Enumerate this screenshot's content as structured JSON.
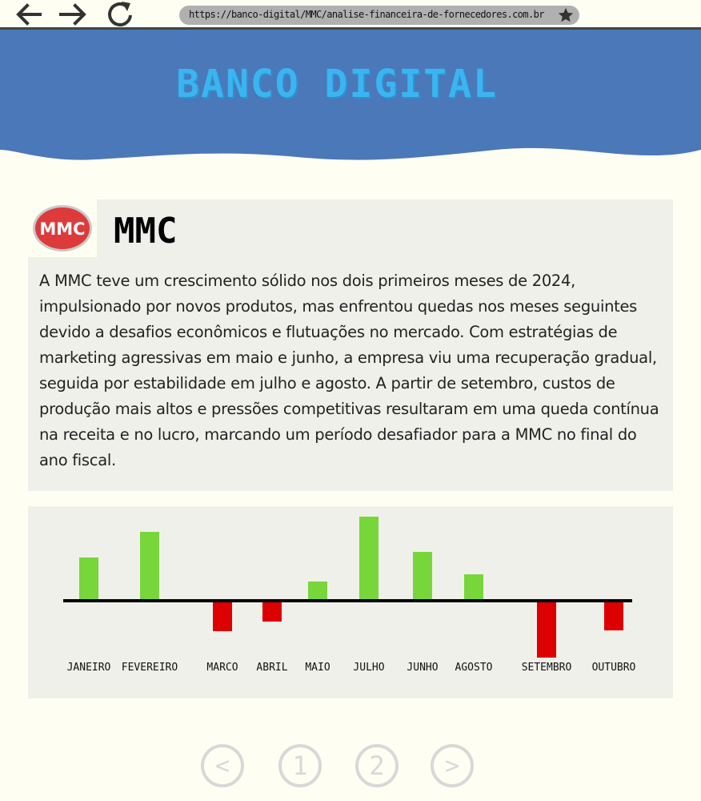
{
  "browser": {
    "url": "https://banco-digital/MMC/analise-financeira-de-fornecedores.com.br"
  },
  "header": {
    "title": "BANCO DIGITAL",
    "color": "#4b78b8",
    "title_color": "#3ab5f0"
  },
  "company": {
    "logo_text": "MMC",
    "name": "MMC",
    "description": "A MMC teve um crescimento sólido nos dois primeiros meses de 2024, impulsionado por novos produtos, mas enfrentou quedas nos meses seguintes devido a desafios econômicos e flutuações no mercado. Com estratégias de marketing agressivas em maio e junho, a empresa viu uma recuperação gradual, seguida por estabilidade em julho e agosto. A partir de setembro, custos de produção mais altos e pressões competitivas resultaram em uma queda contínua na receita e no lucro, marcando um período desafiador para a MMC no final do ano fiscal."
  },
  "chart_data": {
    "type": "bar",
    "categories": [
      "JANEIRO",
      "FEVEREIRO",
      "MARCO",
      "ABRIL",
      "MAIO",
      "JULHO",
      "JUNHO",
      "AGOSTO",
      "SETEMBRO",
      "OUTUBRO"
    ],
    "values": [
      54,
      86,
      -38,
      -26,
      24,
      105,
      61,
      33,
      -71,
      -37
    ],
    "positive_color": "#77d63a",
    "negative_color": "#dd0000",
    "grid": false,
    "legend": "none"
  },
  "pagination": {
    "prev": "<",
    "pages": [
      "1",
      "2"
    ],
    "next": ">"
  }
}
